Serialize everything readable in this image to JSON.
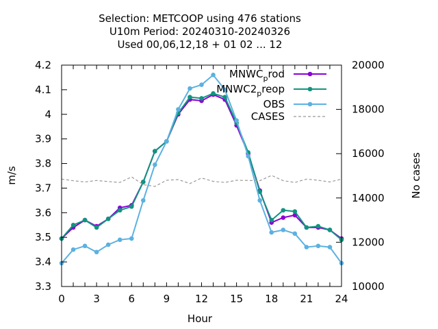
{
  "chart_data": {
    "type": "line",
    "title_lines": [
      "Selection: METCOOP using   476 stations",
      "U10m   Period: 20240310-20240326",
      "Used  00,06,12,18 + 01 02 ... 12"
    ],
    "xlabel": "Hour",
    "ylabel": "m/s",
    "y2label": "No cases",
    "xlim": [
      0,
      24
    ],
    "ylim": [
      3.3,
      4.2
    ],
    "y2lim": [
      10000,
      20000
    ],
    "xticks": [
      "0",
      "3",
      "6",
      "9",
      "12",
      "15",
      "18",
      "21",
      "24"
    ],
    "yticks": [
      "3.3",
      "3.4",
      "3.5",
      "3.6",
      "3.7",
      "3.8",
      "3.9",
      "4",
      "4.1",
      "4.2"
    ],
    "y2ticks": [
      "10000",
      "12000",
      "14000",
      "16000",
      "18000",
      "20000"
    ],
    "legend_position": "top-right",
    "grid": false,
    "x": [
      0,
      1,
      2,
      3,
      4,
      5,
      6,
      7,
      8,
      9,
      10,
      11,
      12,
      13,
      14,
      15,
      16,
      17,
      18,
      19,
      20,
      21,
      22,
      23,
      24
    ],
    "series": [
      {
        "name": "MNWC",
        "name_sub": "p",
        "name_rest": "rod",
        "color": "#8b00d4",
        "style": "solid",
        "axis": "left",
        "values": [
          3.495,
          3.54,
          3.57,
          3.545,
          3.575,
          3.62,
          3.63,
          3.725,
          3.85,
          3.89,
          4.0,
          4.06,
          4.055,
          4.08,
          4.06,
          3.955,
          3.84,
          3.69,
          3.56,
          3.58,
          3.59,
          3.54,
          3.54,
          3.53,
          3.495
        ]
      },
      {
        "name": "MNWC2",
        "name_sub": "p",
        "name_rest": "reop",
        "color": "#119480",
        "style": "solid",
        "axis": "left",
        "values": [
          3.495,
          3.55,
          3.57,
          3.54,
          3.575,
          3.61,
          3.625,
          3.725,
          3.85,
          3.89,
          4.005,
          4.07,
          4.065,
          4.085,
          4.07,
          3.965,
          3.845,
          3.685,
          3.57,
          3.61,
          3.605,
          3.54,
          3.545,
          3.53,
          3.49
        ]
      },
      {
        "name": "OBS",
        "color": "#5cb1e1",
        "style": "solid",
        "axis": "left",
        "values": [
          3.395,
          3.45,
          3.465,
          3.44,
          3.47,
          3.49,
          3.495,
          3.65,
          3.795,
          3.89,
          4.02,
          4.105,
          4.12,
          4.16,
          4.1,
          3.975,
          3.83,
          3.65,
          3.52,
          3.53,
          3.515,
          3.46,
          3.465,
          3.46,
          3.395
        ]
      },
      {
        "name": "CASES",
        "color": "#999999",
        "style": "dashed",
        "axis": "right",
        "values": [
          14850,
          14780,
          14720,
          14790,
          14740,
          14700,
          14950,
          14600,
          14520,
          14800,
          14830,
          14650,
          14900,
          14750,
          14700,
          14800,
          14790,
          14780,
          15020,
          14780,
          14700,
          14850,
          14800,
          14720,
          14850
        ]
      }
    ]
  }
}
